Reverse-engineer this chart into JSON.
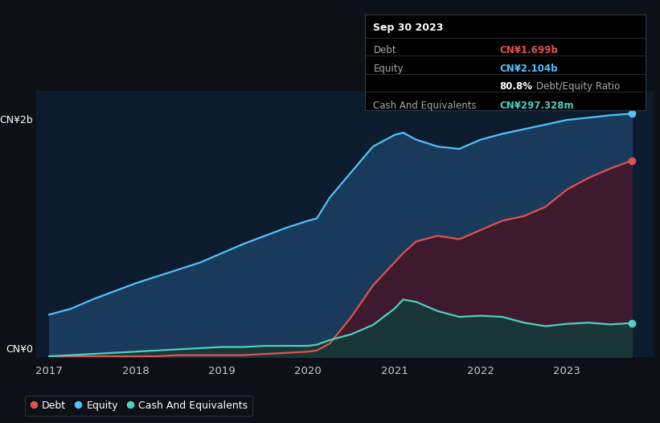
{
  "bg_color": "#0d1117",
  "plot_bg_color": "#0d1b2e",
  "grid_color": "#1e3050",
  "y_label_top": "CN¥2b",
  "y_label_bottom": "CN¥0",
  "x_ticks": [
    "2017",
    "2018",
    "2019",
    "2020",
    "2021",
    "2022",
    "2023"
  ],
  "debt_color": "#e05252",
  "equity_color": "#4fc3f7",
  "cash_color": "#4dd0c4",
  "equity_fill_color": "#1a3a5c",
  "debt_fill_color": "#3d1a2e",
  "cash_fill_color": "#1a3535",
  "tooltip_title": "Sep 30 2023",
  "tooltip_debt_label": "Debt",
  "tooltip_debt_value": "CN¥1.699b",
  "tooltip_equity_label": "Equity",
  "tooltip_equity_value": "CN¥2.104b",
  "tooltip_ratio_bold": "80.8%",
  "tooltip_ratio_text": "Debt/Equity Ratio",
  "tooltip_cash_label": "Cash And Equivalents",
  "tooltip_cash_value": "CN¥297.328m",
  "legend_debt": "Debt",
  "legend_equity": "Equity",
  "legend_cash": "Cash And Equivalents",
  "y_max": 2.3,
  "time_points": [
    2017.0,
    2017.25,
    2017.5,
    2017.75,
    2018.0,
    2018.25,
    2018.5,
    2018.75,
    2019.0,
    2019.25,
    2019.5,
    2019.75,
    2020.0,
    2020.1,
    2020.25,
    2020.5,
    2020.75,
    2021.0,
    2021.1,
    2021.25,
    2021.5,
    2021.75,
    2022.0,
    2022.25,
    2022.5,
    2022.75,
    2023.0,
    2023.25,
    2023.5,
    2023.75
  ],
  "equity": [
    0.37,
    0.42,
    0.5,
    0.57,
    0.64,
    0.7,
    0.76,
    0.82,
    0.9,
    0.98,
    1.05,
    1.12,
    1.18,
    1.2,
    1.38,
    1.6,
    1.82,
    1.92,
    1.94,
    1.88,
    1.82,
    1.8,
    1.88,
    1.93,
    1.97,
    2.01,
    2.05,
    2.07,
    2.09,
    2.104
  ],
  "debt": [
    0.01,
    0.01,
    0.01,
    0.01,
    0.01,
    0.01,
    0.02,
    0.02,
    0.02,
    0.02,
    0.03,
    0.04,
    0.05,
    0.06,
    0.12,
    0.35,
    0.62,
    0.82,
    0.9,
    1.0,
    1.05,
    1.02,
    1.1,
    1.18,
    1.22,
    1.3,
    1.45,
    1.55,
    1.63,
    1.699
  ],
  "cash": [
    0.01,
    0.02,
    0.03,
    0.04,
    0.05,
    0.06,
    0.07,
    0.08,
    0.09,
    0.09,
    0.1,
    0.1,
    0.1,
    0.11,
    0.15,
    0.2,
    0.28,
    0.42,
    0.5,
    0.48,
    0.4,
    0.35,
    0.36,
    0.35,
    0.3,
    0.27,
    0.29,
    0.3,
    0.285,
    0.297
  ]
}
